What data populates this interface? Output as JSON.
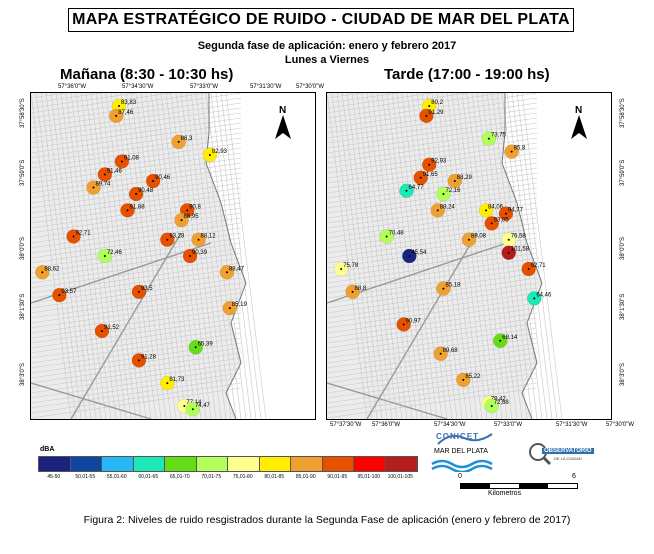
{
  "title": "MAPA ESTRATÉGICO DE RUIDO -  CIUDAD DE MAR DEL PLATA",
  "subtitle1": "Segunda fase de aplicación: enero y febrero 2017",
  "subtitle2": "Lunes a Viernes",
  "panels": [
    {
      "title": "Mañana (8:30 - 10:30 hs)"
    },
    {
      "title": "Tarde (17:00 - 19:00 hs)"
    }
  ],
  "north_label": "N",
  "coords": {
    "top": [
      "57°36'0\"W",
      "57°34'30\"W",
      "57°33'0\"W",
      "57°31'30\"W",
      "57°30'0\"W"
    ],
    "bottom": [
      "57°37'30\"W",
      "57°36'0\"W",
      "57°34'30\"W",
      "57°33'0\"W",
      "57°31'30\"W",
      "57°30'0\"W"
    ],
    "left": [
      "37°58'30\"S",
      "37°59'0\"S",
      "38°0'0\"S",
      "38°1'30\"S",
      "38°3'0\"S"
    ],
    "right": [
      "37°58'30\"S",
      "37°59'0\"S",
      "38°0'0\"S",
      "38°1'30\"S",
      "38°3'0\"S"
    ]
  },
  "legend": {
    "title": "dBA",
    "classes": [
      {
        "label": "45-50",
        "color": "#1a237e"
      },
      {
        "label": "50,01-55",
        "color": "#0d47a1"
      },
      {
        "label": "55,01-60",
        "color": "#29b6f6"
      },
      {
        "label": "60,01-65",
        "color": "#1de9b6"
      },
      {
        "label": "65,01-70",
        "color": "#64dd17"
      },
      {
        "label": "70,01-75",
        "color": "#b2ff59"
      },
      {
        "label": "75,01-80",
        "color": "#ffff8d"
      },
      {
        "label": "80,01-85",
        "color": "#ffee00"
      },
      {
        "label": "85,01-90",
        "color": "#f0a030"
      },
      {
        "label": "90,01-95",
        "color": "#e65100"
      },
      {
        "label": "95,01-100",
        "color": "#ff0000"
      },
      {
        "label": "100,01-105",
        "color": "#b71c1c"
      }
    ]
  },
  "points": {
    "morning": [
      {
        "v": "83,83",
        "x": 0.31,
        "y": 0.04
      },
      {
        "v": "87,46",
        "x": 0.3,
        "y": 0.07
      },
      {
        "v": "86,3",
        "x": 0.52,
        "y": 0.15
      },
      {
        "v": "82,93",
        "x": 0.63,
        "y": 0.19
      },
      {
        "v": "91,08",
        "x": 0.32,
        "y": 0.21
      },
      {
        "v": "91,46",
        "x": 0.26,
        "y": 0.25
      },
      {
        "v": "90,46",
        "x": 0.43,
        "y": 0.27
      },
      {
        "v": "89,74",
        "x": 0.22,
        "y": 0.29
      },
      {
        "v": "90,48",
        "x": 0.37,
        "y": 0.31
      },
      {
        "v": "91,88",
        "x": 0.34,
        "y": 0.36
      },
      {
        "v": "90,8",
        "x": 0.55,
        "y": 0.36
      },
      {
        "v": "88,95",
        "x": 0.53,
        "y": 0.39
      },
      {
        "v": "92,71",
        "x": 0.15,
        "y": 0.44
      },
      {
        "v": "93,28",
        "x": 0.48,
        "y": 0.45
      },
      {
        "v": "88,12",
        "x": 0.59,
        "y": 0.45
      },
      {
        "v": "72,46",
        "x": 0.26,
        "y": 0.5
      },
      {
        "v": "90,39",
        "x": 0.56,
        "y": 0.5
      },
      {
        "v": "88,62",
        "x": 0.04,
        "y": 0.55
      },
      {
        "v": "88,47",
        "x": 0.69,
        "y": 0.55
      },
      {
        "v": "93,57",
        "x": 0.1,
        "y": 0.62
      },
      {
        "v": "93,5",
        "x": 0.38,
        "y": 0.61
      },
      {
        "v": "85,19",
        "x": 0.7,
        "y": 0.66
      },
      {
        "v": "91,52",
        "x": 0.25,
        "y": 0.73
      },
      {
        "v": "65,39",
        "x": 0.58,
        "y": 0.78
      },
      {
        "v": "91,28",
        "x": 0.38,
        "y": 0.82
      },
      {
        "v": "81,73",
        "x": 0.48,
        "y": 0.89
      },
      {
        "v": "77,14",
        "x": 0.54,
        "y": 0.96
      },
      {
        "v": "74,47",
        "x": 0.57,
        "y": 0.97
      }
    ],
    "afternoon": [
      {
        "v": "80,2",
        "x": 0.36,
        "y": 0.04
      },
      {
        "v": "91,29",
        "x": 0.35,
        "y": 0.07
      },
      {
        "v": "73,75",
        "x": 0.57,
        "y": 0.14
      },
      {
        "v": "85,8",
        "x": 0.65,
        "y": 0.18
      },
      {
        "v": "92,93",
        "x": 0.36,
        "y": 0.22
      },
      {
        "v": "91,65",
        "x": 0.33,
        "y": 0.26
      },
      {
        "v": "88,29",
        "x": 0.45,
        "y": 0.27
      },
      {
        "v": "64,77",
        "x": 0.28,
        "y": 0.3
      },
      {
        "v": "72,16",
        "x": 0.41,
        "y": 0.31
      },
      {
        "v": "88,24",
        "x": 0.39,
        "y": 0.36
      },
      {
        "v": "84,06",
        "x": 0.56,
        "y": 0.36
      },
      {
        "v": "94,77",
        "x": 0.63,
        "y": 0.37
      },
      {
        "v": "93,05",
        "x": 0.58,
        "y": 0.4
      },
      {
        "v": "70,48",
        "x": 0.21,
        "y": 0.44
      },
      {
        "v": "89,08",
        "x": 0.5,
        "y": 0.45
      },
      {
        "v": "76,58",
        "x": 0.64,
        "y": 0.45
      },
      {
        "v": "45,54",
        "x": 0.29,
        "y": 0.5
      },
      {
        "v": "101,58",
        "x": 0.64,
        "y": 0.49
      },
      {
        "v": "75,78",
        "x": 0.05,
        "y": 0.54
      },
      {
        "v": "92,71",
        "x": 0.71,
        "y": 0.54
      },
      {
        "v": "88,8",
        "x": 0.09,
        "y": 0.61
      },
      {
        "v": "85,18",
        "x": 0.41,
        "y": 0.6
      },
      {
        "v": "64,46",
        "x": 0.73,
        "y": 0.63
      },
      {
        "v": "90,97",
        "x": 0.27,
        "y": 0.71
      },
      {
        "v": "68,14",
        "x": 0.61,
        "y": 0.76
      },
      {
        "v": "89,68",
        "x": 0.4,
        "y": 0.8
      },
      {
        "v": "85,22",
        "x": 0.48,
        "y": 0.88
      },
      {
        "v": "79,42",
        "x": 0.57,
        "y": 0.95
      },
      {
        "v": "72,68",
        "x": 0.58,
        "y": 0.96
      }
    ]
  },
  "logos": {
    "conicet": "CONICET",
    "mdp": "MAR DEL PLATA",
    "observatorio": "OBSERVATORIO",
    "observatorio_sub": "DE LA CIUDAD"
  },
  "scale": {
    "zero": "0",
    "max": "6",
    "unit": "Kilometros"
  },
  "caption": "Figura 2:  Niveles de ruido resgistrados durante la Segunda Fase de aplicación (enero y febrero de 2017)"
}
